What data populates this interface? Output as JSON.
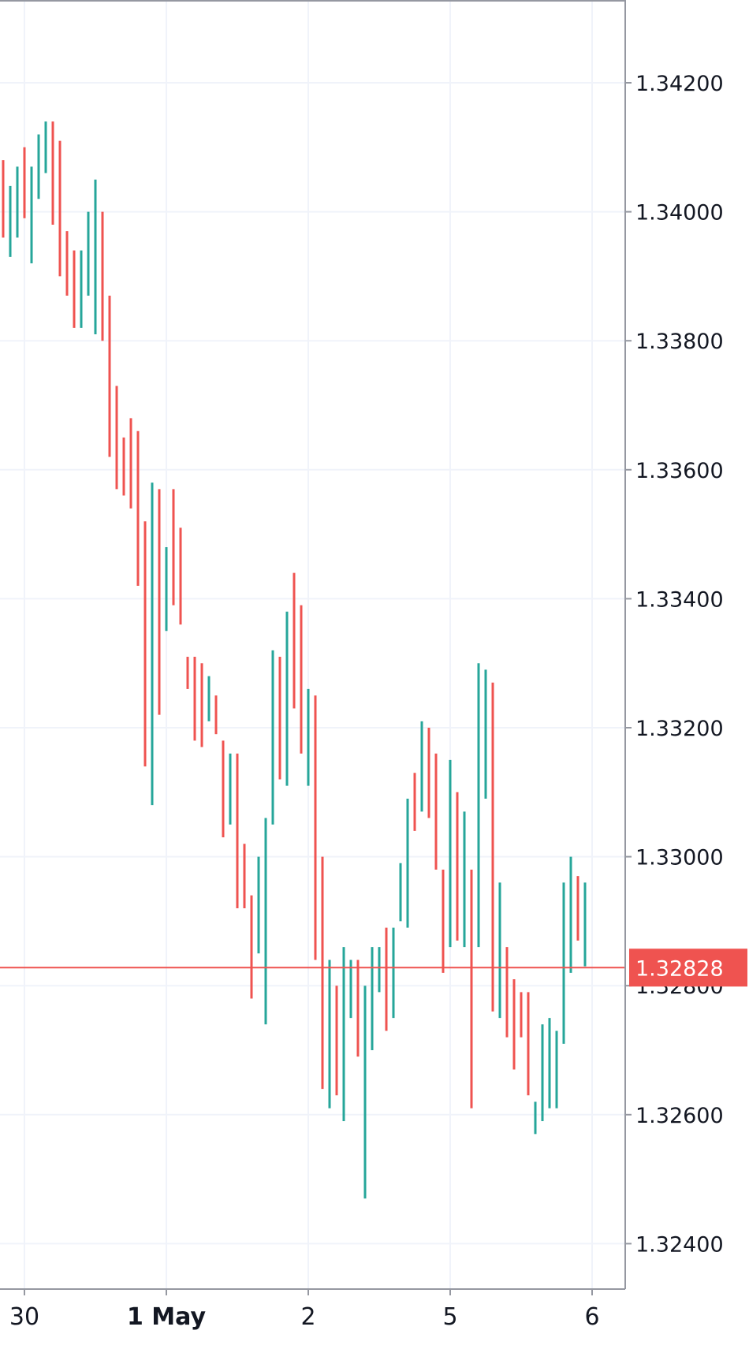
{
  "chart_data": {
    "type": "ohlc",
    "price_axis": {
      "min": 1.3228,
      "max": 1.3432,
      "ticks": [
        {
          "value": 1.342,
          "label": "1.34200"
        },
        {
          "value": 1.34,
          "label": "1.34000"
        },
        {
          "value": 1.338,
          "label": "1.33800"
        },
        {
          "value": 1.336,
          "label": "1.33600"
        },
        {
          "value": 1.334,
          "label": "1.33400"
        },
        {
          "value": 1.332,
          "label": "1.33200"
        },
        {
          "value": 1.33,
          "label": "1.33000"
        },
        {
          "value": 1.326,
          "label": "1.32600"
        },
        {
          "value": 1.324,
          "label": "1.32400"
        }
      ],
      "hidden_tick_label": "1.32800"
    },
    "time_axis": {
      "labels": [
        {
          "bar": 3,
          "label": "30",
          "bold": false
        },
        {
          "bar": 23,
          "label": "1 May",
          "bold": true
        },
        {
          "bar": 43,
          "label": "2",
          "bold": false
        },
        {
          "bar": 63,
          "label": "5",
          "bold": false
        },
        {
          "bar": 83,
          "label": "6",
          "bold": false
        }
      ]
    },
    "last_price": {
      "value": 1.32828,
      "label": "1.32828"
    },
    "grid": true,
    "colors": {
      "up": "#26a69a",
      "down": "#ef5350",
      "grid": "#f0f3fa",
      "axis": "#9598a1",
      "last": "#ef5350"
    },
    "bars": [
      {
        "high": 1.3408,
        "low": 1.3396,
        "dir": "down"
      },
      {
        "high": 1.3404,
        "low": 1.3393,
        "dir": "up"
      },
      {
        "high": 1.3407,
        "low": 1.3396,
        "dir": "up"
      },
      {
        "high": 1.341,
        "low": 1.3399,
        "dir": "down"
      },
      {
        "high": 1.3407,
        "low": 1.3392,
        "dir": "up"
      },
      {
        "high": 1.3412,
        "low": 1.3402,
        "dir": "up"
      },
      {
        "high": 1.3414,
        "low": 1.3406,
        "dir": "up"
      },
      {
        "high": 1.3414,
        "low": 1.3398,
        "dir": "down"
      },
      {
        "high": 1.3411,
        "low": 1.339,
        "dir": "down"
      },
      {
        "high": 1.3397,
        "low": 1.3387,
        "dir": "down"
      },
      {
        "high": 1.3394,
        "low": 1.3382,
        "dir": "down"
      },
      {
        "high": 1.3394,
        "low": 1.3382,
        "dir": "up"
      },
      {
        "high": 1.34,
        "low": 1.3387,
        "dir": "up"
      },
      {
        "high": 1.3405,
        "low": 1.3381,
        "dir": "up"
      },
      {
        "high": 1.34,
        "low": 1.338,
        "dir": "down"
      },
      {
        "high": 1.3387,
        "low": 1.3362,
        "dir": "down"
      },
      {
        "high": 1.3373,
        "low": 1.3357,
        "dir": "down"
      },
      {
        "high": 1.3365,
        "low": 1.3356,
        "dir": "down"
      },
      {
        "high": 1.3368,
        "low": 1.3354,
        "dir": "down"
      },
      {
        "high": 1.3366,
        "low": 1.3342,
        "dir": "down"
      },
      {
        "high": 1.3352,
        "low": 1.3314,
        "dir": "down"
      },
      {
        "high": 1.3358,
        "low": 1.3308,
        "dir": "up"
      },
      {
        "high": 1.3357,
        "low": 1.3322,
        "dir": "down"
      },
      {
        "high": 1.3348,
        "low": 1.3335,
        "dir": "up"
      },
      {
        "high": 1.3357,
        "low": 1.3339,
        "dir": "down"
      },
      {
        "high": 1.3351,
        "low": 1.3336,
        "dir": "down"
      },
      {
        "high": 1.3331,
        "low": 1.3326,
        "dir": "down"
      },
      {
        "high": 1.3331,
        "low": 1.3318,
        "dir": "down"
      },
      {
        "high": 1.333,
        "low": 1.3317,
        "dir": "down"
      },
      {
        "high": 1.3328,
        "low": 1.3321,
        "dir": "up"
      },
      {
        "high": 1.3325,
        "low": 1.3319,
        "dir": "down"
      },
      {
        "high": 1.3318,
        "low": 1.3303,
        "dir": "down"
      },
      {
        "high": 1.3316,
        "low": 1.3305,
        "dir": "up"
      },
      {
        "high": 1.3316,
        "low": 1.3292,
        "dir": "down"
      },
      {
        "high": 1.3302,
        "low": 1.3292,
        "dir": "down"
      },
      {
        "high": 1.3294,
        "low": 1.3278,
        "dir": "down"
      },
      {
        "high": 1.33,
        "low": 1.3285,
        "dir": "up"
      },
      {
        "high": 1.3306,
        "low": 1.3274,
        "dir": "up"
      },
      {
        "high": 1.3332,
        "low": 1.3305,
        "dir": "up"
      },
      {
        "high": 1.3331,
        "low": 1.3312,
        "dir": "down"
      },
      {
        "high": 1.3338,
        "low": 1.3311,
        "dir": "up"
      },
      {
        "high": 1.3344,
        "low": 1.3323,
        "dir": "down"
      },
      {
        "high": 1.3339,
        "low": 1.3316,
        "dir": "down"
      },
      {
        "high": 1.3326,
        "low": 1.3311,
        "dir": "up"
      },
      {
        "high": 1.3325,
        "low": 1.3284,
        "dir": "down"
      },
      {
        "high": 1.33,
        "low": 1.3264,
        "dir": "down"
      },
      {
        "high": 1.3284,
        "low": 1.3261,
        "dir": "up"
      },
      {
        "high": 1.328,
        "low": 1.3263,
        "dir": "down"
      },
      {
        "high": 1.3286,
        "low": 1.3259,
        "dir": "up"
      },
      {
        "high": 1.3284,
        "low": 1.3275,
        "dir": "up"
      },
      {
        "high": 1.3284,
        "low": 1.3269,
        "dir": "down"
      },
      {
        "high": 1.328,
        "low": 1.3247,
        "dir": "up"
      },
      {
        "high": 1.3286,
        "low": 1.327,
        "dir": "up"
      },
      {
        "high": 1.3286,
        "low": 1.3279,
        "dir": "up"
      },
      {
        "high": 1.3289,
        "low": 1.3273,
        "dir": "down"
      },
      {
        "high": 1.3289,
        "low": 1.3275,
        "dir": "up"
      },
      {
        "high": 1.3299,
        "low": 1.329,
        "dir": "up"
      },
      {
        "high": 1.3309,
        "low": 1.3289,
        "dir": "up"
      },
      {
        "high": 1.3313,
        "low": 1.3304,
        "dir": "down"
      },
      {
        "high": 1.3321,
        "low": 1.3307,
        "dir": "up"
      },
      {
        "high": 1.332,
        "low": 1.3306,
        "dir": "down"
      },
      {
        "high": 1.3316,
        "low": 1.3298,
        "dir": "down"
      },
      {
        "high": 1.3298,
        "low": 1.3282,
        "dir": "down"
      },
      {
        "high": 1.3315,
        "low": 1.3286,
        "dir": "up"
      },
      {
        "high": 1.331,
        "low": 1.3287,
        "dir": "down"
      },
      {
        "high": 1.3307,
        "low": 1.3286,
        "dir": "up"
      },
      {
        "high": 1.3298,
        "low": 1.3261,
        "dir": "down"
      },
      {
        "high": 1.333,
        "low": 1.3286,
        "dir": "up"
      },
      {
        "high": 1.3329,
        "low": 1.3309,
        "dir": "up"
      },
      {
        "high": 1.3327,
        "low": 1.3276,
        "dir": "down"
      },
      {
        "high": 1.3296,
        "low": 1.3275,
        "dir": "up"
      },
      {
        "high": 1.3286,
        "low": 1.3272,
        "dir": "down"
      },
      {
        "high": 1.3281,
        "low": 1.3267,
        "dir": "down"
      },
      {
        "high": 1.3279,
        "low": 1.3272,
        "dir": "down"
      },
      {
        "high": 1.3279,
        "low": 1.3263,
        "dir": "down"
      },
      {
        "high": 1.3262,
        "low": 1.3257,
        "dir": "up"
      },
      {
        "high": 1.3274,
        "low": 1.3259,
        "dir": "up"
      },
      {
        "high": 1.3275,
        "low": 1.3261,
        "dir": "up"
      },
      {
        "high": 1.3273,
        "low": 1.3261,
        "dir": "up"
      },
      {
        "high": 1.3296,
        "low": 1.3271,
        "dir": "up"
      },
      {
        "high": 1.33,
        "low": 1.3282,
        "dir": "up"
      },
      {
        "high": 1.3297,
        "low": 1.3287,
        "dir": "down"
      },
      {
        "high": 1.3296,
        "low": 1.3283,
        "dir": "up"
      }
    ]
  }
}
